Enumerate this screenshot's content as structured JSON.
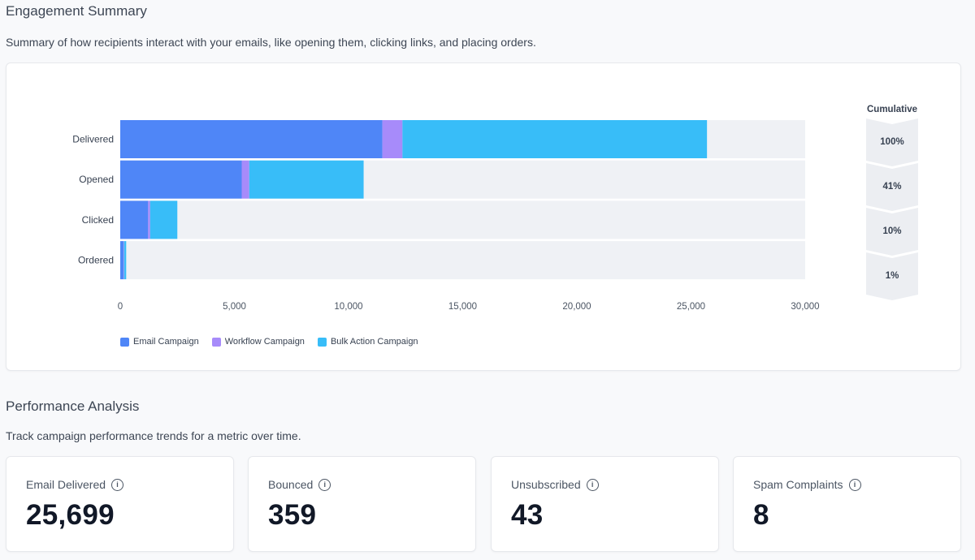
{
  "engagement": {
    "title": "Engagement Summary",
    "description": "Summary of how recipients interact with your emails, like opening them, clicking links, and placing orders."
  },
  "chart_data": {
    "type": "bar",
    "orientation": "horizontal",
    "stacked": true,
    "categories": [
      "Delivered",
      "Opened",
      "Clicked",
      "Ordered"
    ],
    "series": [
      {
        "name": "Email Campaign",
        "color": "#4f86f7",
        "values": [
          11480,
          5320,
          1220,
          150
        ]
      },
      {
        "name": "Workflow Campaign",
        "color": "#a78bfa",
        "values": [
          880,
          330,
          90,
          20
        ]
      },
      {
        "name": "Bulk Action Campaign",
        "color": "#38bdf8",
        "values": [
          13339,
          5010,
          1190,
          90
        ]
      }
    ],
    "background_max": 30000,
    "xlim": [
      0,
      30000
    ],
    "xticks": [
      0,
      5000,
      10000,
      15000,
      20000,
      25000,
      30000
    ],
    "xtick_labels": [
      "0",
      "5,000",
      "10,000",
      "15,000",
      "20,000",
      "25,000",
      "30,000"
    ],
    "cumulative_label": "Cumulative",
    "cumulative": [
      "100%",
      "41%",
      "10%",
      "1%"
    ],
    "legend_position": "bottom-left"
  },
  "performance": {
    "title": "Performance Analysis",
    "description": "Track campaign performance trends for a metric over time.",
    "metrics": [
      {
        "label": "Email Delivered",
        "value": "25,699"
      },
      {
        "label": "Bounced",
        "value": "359"
      },
      {
        "label": "Unsubscribed",
        "value": "43"
      },
      {
        "label": "Spam Complaints",
        "value": "8"
      }
    ]
  },
  "colors": {
    "track": "#eff1f5",
    "funnel": "#eceef2"
  }
}
